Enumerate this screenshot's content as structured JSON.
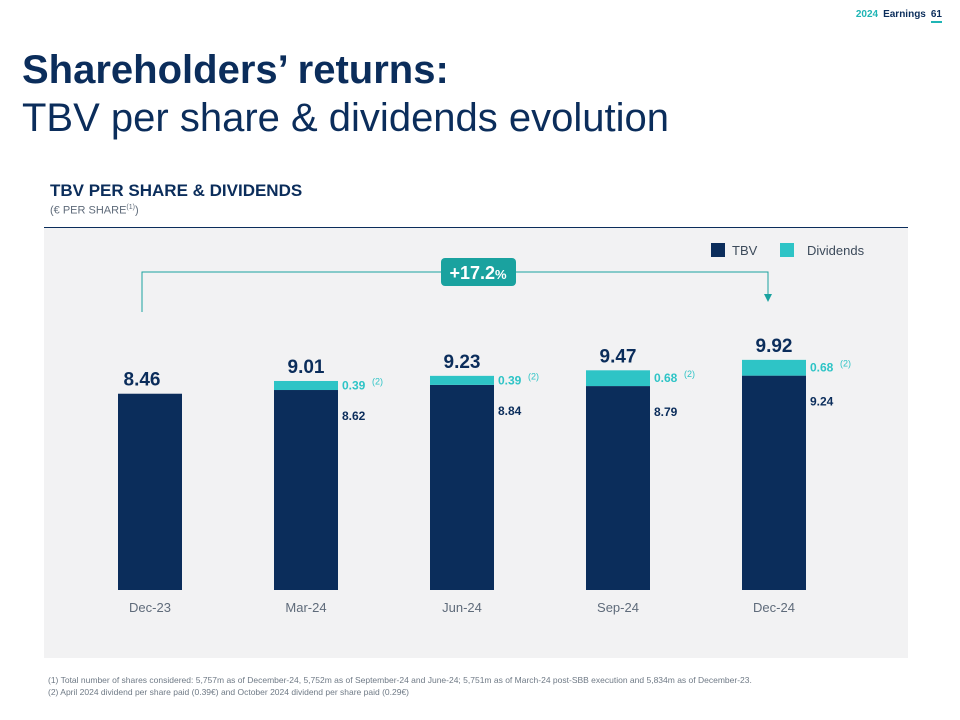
{
  "header": {
    "year": "2024",
    "label": "Earnings",
    "page": "61"
  },
  "title": {
    "line1": "Shareholders’ returns:",
    "line2": "TBV per share & dividends evolution"
  },
  "section": {
    "title": "TBV PER SHARE & DIVIDENDS",
    "subtitle": "(€ PER SHARE",
    "subtitle_sup": "(1)",
    "subtitle_close": ")"
  },
  "colors": {
    "tbv": "#0b2d5b",
    "dividends": "#2ec4c6",
    "growth": "#1aa29f"
  },
  "chart_data": {
    "type": "bar",
    "stacked": true,
    "categories": [
      "Dec-23",
      "Mar-24",
      "Jun-24",
      "Sep-24",
      "Dec-24"
    ],
    "series": [
      {
        "name": "TBV",
        "values": [
          8.46,
          8.62,
          8.84,
          8.79,
          9.24
        ]
      },
      {
        "name": "Dividends",
        "values": [
          0,
          0.39,
          0.39,
          0.68,
          0.68
        ]
      }
    ],
    "totals": [
      8.46,
      9.01,
      9.23,
      9.47,
      9.92
    ],
    "total_labels": [
      "8.46",
      "9.01",
      "9.23",
      "9.47",
      "9.92"
    ],
    "tbv_labels": [
      "",
      "8.62",
      "8.84",
      "8.79",
      "9.24"
    ],
    "dividend_labels": [
      "",
      "0.39",
      "0.39",
      "0.68",
      "0.68"
    ],
    "dividend_note": "(2)",
    "growth_label": "+17.2",
    "growth_unit": "%",
    "growth_from": "Dec-23",
    "growth_to": "Dec-24",
    "legend": [
      "TBV",
      "Dividends"
    ],
    "ylim": [
      0,
      10
    ]
  },
  "footnotes": [
    "(1) Total number of shares considered: 5,757m as of December-24, 5,752m as of September-24 and June-24; 5,751m as of March-24 post-SBB execution and 5,834m as of December-23.",
    "(2) April 2024 dividend per share paid (0.39€) and October 2024 dividend per share paid (0.29€)"
  ]
}
